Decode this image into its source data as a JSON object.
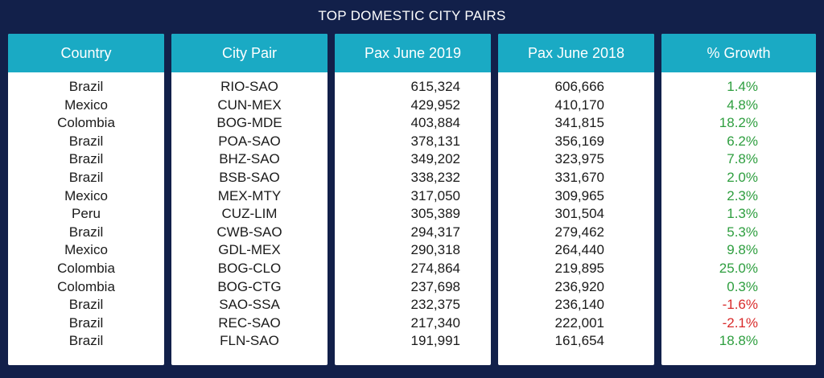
{
  "title": "TOP DOMESTIC CITY PAIRS",
  "headers": {
    "country": "Country",
    "city_pair": "City Pair",
    "pax_2019": "Pax June 2019",
    "pax_2018": "Pax June 2018",
    "growth": "% Growth"
  },
  "colors": {
    "background": "#12204a",
    "header": "#1aaac4",
    "positive": "#2e9e3f",
    "negative": "#d92b2b"
  },
  "rows": [
    {
      "country": "Brazil",
      "city_pair": "RIO-SAO",
      "pax_2019": "615,324",
      "pax_2018": "606,666",
      "growth": "1.4%"
    },
    {
      "country": "Mexico",
      "city_pair": "CUN-MEX",
      "pax_2019": "429,952",
      "pax_2018": "410,170",
      "growth": "4.8%"
    },
    {
      "country": "Colombia",
      "city_pair": "BOG-MDE",
      "pax_2019": "403,884",
      "pax_2018": "341,815",
      "growth": "18.2%"
    },
    {
      "country": "Brazil",
      "city_pair": "POA-SAO",
      "pax_2019": "378,131",
      "pax_2018": "356,169",
      "growth": "6.2%"
    },
    {
      "country": "Brazil",
      "city_pair": "BHZ-SAO",
      "pax_2019": "349,202",
      "pax_2018": "323,975",
      "growth": "7.8%"
    },
    {
      "country": "Brazil",
      "city_pair": "BSB-SAO",
      "pax_2019": "338,232",
      "pax_2018": "331,670",
      "growth": "2.0%"
    },
    {
      "country": "Mexico",
      "city_pair": "MEX-MTY",
      "pax_2019": "317,050",
      "pax_2018": "309,965",
      "growth": "2.3%"
    },
    {
      "country": "Peru",
      "city_pair": "CUZ-LIM",
      "pax_2019": "305,389",
      "pax_2018": "301,504",
      "growth": "1.3%"
    },
    {
      "country": "Brazil",
      "city_pair": "CWB-SAO",
      "pax_2019": "294,317",
      "pax_2018": "279,462",
      "growth": "5.3%"
    },
    {
      "country": "Mexico",
      "city_pair": "GDL-MEX",
      "pax_2019": "290,318",
      "pax_2018": "264,440",
      "growth": "9.8%"
    },
    {
      "country": "Colombia",
      "city_pair": "BOG-CLO",
      "pax_2019": "274,864",
      "pax_2018": "219,895",
      "growth": "25.0%"
    },
    {
      "country": "Colombia",
      "city_pair": "BOG-CTG",
      "pax_2019": "237,698",
      "pax_2018": "236,920",
      "growth": "0.3%"
    },
    {
      "country": "Brazil",
      "city_pair": "SAO-SSA",
      "pax_2019": "232,375",
      "pax_2018": "236,140",
      "growth": "-1.6%"
    },
    {
      "country": "Brazil",
      "city_pair": "REC-SAO",
      "pax_2019": "217,340",
      "pax_2018": "222,001",
      "growth": "-2.1%"
    },
    {
      "country": "Brazil",
      "city_pair": "FLN-SAO",
      "pax_2019": "191,991",
      "pax_2018": "161,654",
      "growth": "18.8%"
    }
  ]
}
